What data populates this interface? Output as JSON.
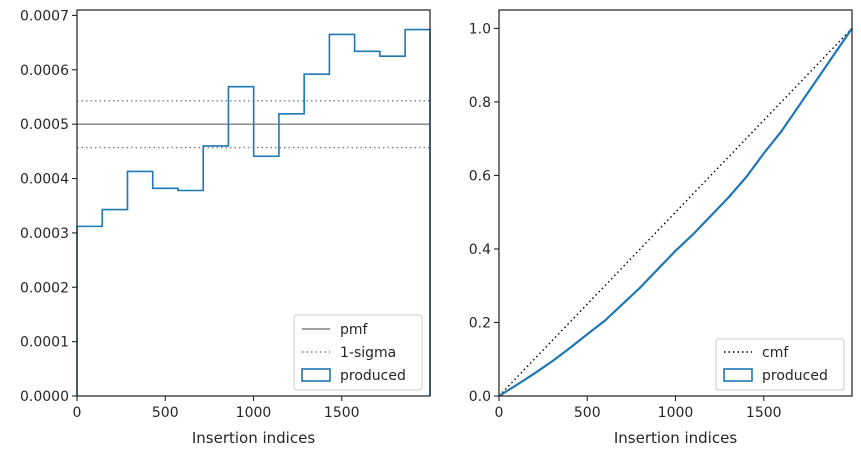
{
  "chart_data": [
    {
      "type": "histogram",
      "xlabel": "Insertion indices",
      "ylabel": "",
      "xlim": [
        0,
        2000
      ],
      "ylim": [
        0,
        0.00071
      ],
      "xticks": [
        0,
        500,
        1000,
        1500
      ],
      "xtick_labels": [
        "0",
        "500",
        "1000",
        "1500"
      ],
      "yticks": [
        0,
        0.0001,
        0.0002,
        0.0003,
        0.0004,
        0.0005,
        0.0006,
        0.0007
      ],
      "ytick_labels": [
        "0.0000",
        "0.0001",
        "0.0002",
        "0.0003",
        "0.0004",
        "0.0005",
        "0.0006",
        "0.0007"
      ],
      "bin_edges": [
        0,
        143,
        286,
        429,
        572,
        715,
        858,
        1001,
        1144,
        1287,
        1430,
        1573,
        1716,
        1859,
        2000
      ],
      "values": [
        0.000312,
        0.000343,
        0.000413,
        0.000382,
        0.000378,
        0.00046,
        0.000569,
        0.000441,
        0.000519,
        0.000592,
        0.000665,
        0.000634,
        0.000625,
        0.000674
      ],
      "pmf": 0.0005,
      "sigma_band": [
        0.000457,
        0.000543
      ],
      "legend": {
        "position": "lower right",
        "entries": [
          {
            "label": "pmf",
            "style": "solid",
            "color": "#808080"
          },
          {
            "label": "1-sigma",
            "style": "dotted",
            "color": "#808080"
          },
          {
            "label": "produced",
            "style": "patch",
            "color": "#1f77b4"
          }
        ]
      }
    },
    {
      "type": "line",
      "xlabel": "Insertion indices",
      "ylabel": "",
      "xlim": [
        0,
        2000
      ],
      "ylim": [
        0,
        1.05
      ],
      "xticks": [
        0,
        500,
        1000,
        1500
      ],
      "xtick_labels": [
        "0",
        "500",
        "1000",
        "1500"
      ],
      "yticks": [
        0,
        0.2,
        0.4,
        0.6,
        0.8,
        1.0
      ],
      "ytick_labels": [
        "0.0",
        "0.2",
        "0.4",
        "0.6",
        "0.8",
        "1.0"
      ],
      "cmf": {
        "x": [
          0,
          2000
        ],
        "y": [
          0,
          1.0
        ]
      },
      "produced": {
        "x": [
          0,
          100,
          200,
          300,
          400,
          500,
          600,
          700,
          800,
          900,
          1000,
          1100,
          1200,
          1300,
          1400,
          1500,
          1600,
          1700,
          1800,
          1900,
          2000
        ],
        "y": [
          0,
          0.03,
          0.061,
          0.094,
          0.13,
          0.168,
          0.205,
          0.25,
          0.295,
          0.345,
          0.395,
          0.44,
          0.49,
          0.54,
          0.595,
          0.66,
          0.72,
          0.79,
          0.86,
          0.93,
          1.0
        ]
      },
      "legend": {
        "position": "lower right",
        "entries": [
          {
            "label": "cmf",
            "style": "dotted",
            "color": "#000000"
          },
          {
            "label": "produced",
            "style": "patch",
            "color": "#1f77b4"
          }
        ]
      }
    }
  ]
}
